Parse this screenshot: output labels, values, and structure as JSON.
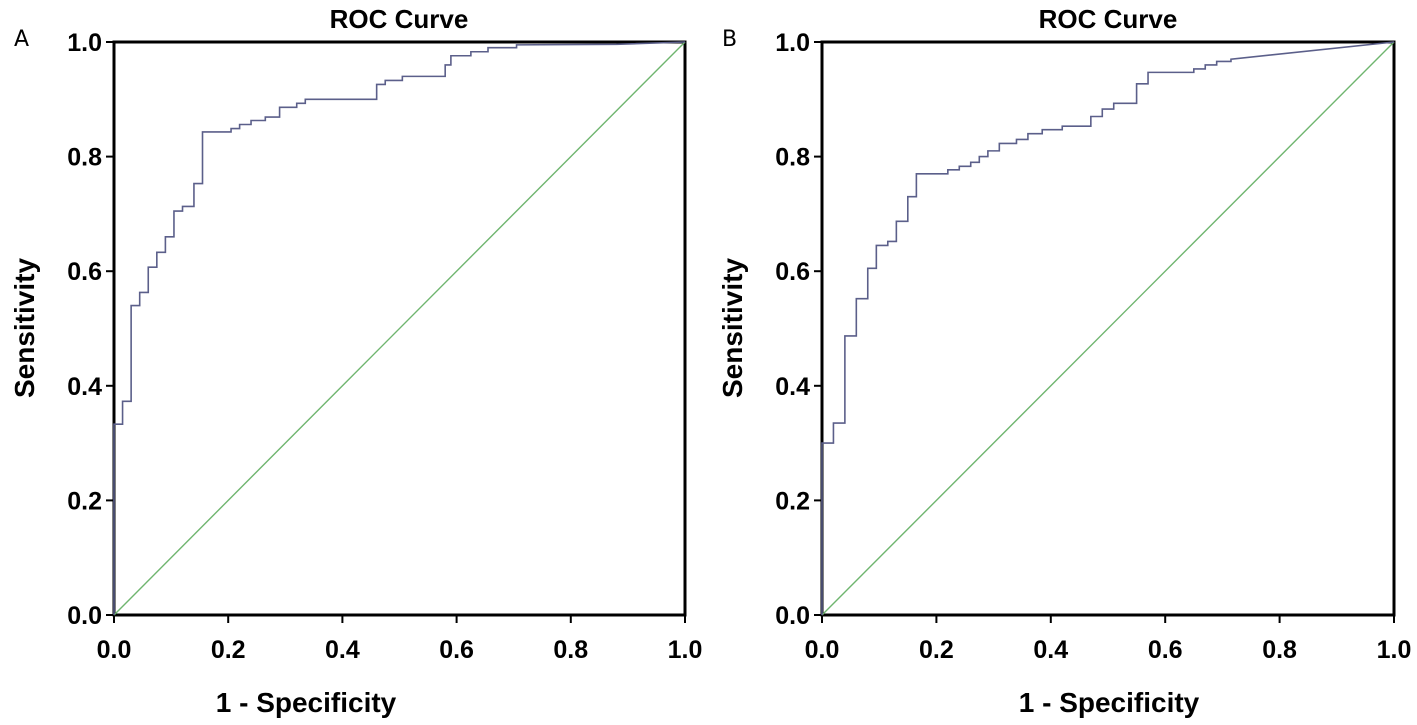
{
  "colors": {
    "roc_line": "#5b5f8a",
    "reference_line": "#6fb56f",
    "frame": "#000000"
  },
  "chart_data": [
    {
      "type": "line",
      "panel_label": "A",
      "title": "ROC Curve",
      "xlabel": "1 - Specificity",
      "ylabel": "Sensitivity",
      "xlim": [
        0,
        1
      ],
      "ylim": [
        0,
        1
      ],
      "xticks": [
        "0.0",
        "0.2",
        "0.4",
        "0.6",
        "0.8",
        "1.0"
      ],
      "yticks": [
        "0.0",
        "0.2",
        "0.4",
        "0.6",
        "0.8",
        "1.0"
      ],
      "series": [
        {
          "name": "ROC",
          "points": [
            [
              0,
              0
            ],
            [
              0,
              0.333
            ],
            [
              0.015,
              0.333
            ],
            [
              0.015,
              0.373
            ],
            [
              0.03,
              0.373
            ],
            [
              0.03,
              0.54
            ],
            [
              0.045,
              0.54
            ],
            [
              0.045,
              0.563
            ],
            [
              0.06,
              0.563
            ],
            [
              0.06,
              0.607
            ],
            [
              0.075,
              0.607
            ],
            [
              0.075,
              0.633
            ],
            [
              0.09,
              0.633
            ],
            [
              0.09,
              0.66
            ],
            [
              0.105,
              0.66
            ],
            [
              0.105,
              0.705
            ],
            [
              0.12,
              0.705
            ],
            [
              0.12,
              0.713
            ],
            [
              0.14,
              0.713
            ],
            [
              0.14,
              0.753
            ],
            [
              0.155,
              0.753
            ],
            [
              0.155,
              0.843
            ],
            [
              0.205,
              0.843
            ],
            [
              0.205,
              0.849
            ],
            [
              0.22,
              0.849
            ],
            [
              0.22,
              0.856
            ],
            [
              0.24,
              0.856
            ],
            [
              0.24,
              0.863
            ],
            [
              0.265,
              0.863
            ],
            [
              0.265,
              0.869
            ],
            [
              0.29,
              0.869
            ],
            [
              0.29,
              0.886
            ],
            [
              0.32,
              0.886
            ],
            [
              0.32,
              0.893
            ],
            [
              0.335,
              0.893
            ],
            [
              0.335,
              0.9
            ],
            [
              0.46,
              0.9
            ],
            [
              0.46,
              0.926
            ],
            [
              0.475,
              0.926
            ],
            [
              0.475,
              0.933
            ],
            [
              0.505,
              0.933
            ],
            [
              0.505,
              0.94
            ],
            [
              0.58,
              0.94
            ],
            [
              0.58,
              0.96
            ],
            [
              0.59,
              0.96
            ],
            [
              0.59,
              0.976
            ],
            [
              0.625,
              0.976
            ],
            [
              0.625,
              0.983
            ],
            [
              0.655,
              0.983
            ],
            [
              0.655,
              0.99
            ],
            [
              0.705,
              0.99
            ],
            [
              0.705,
              0.995
            ],
            [
              0.88,
              0.996
            ],
            [
              1,
              1
            ]
          ]
        },
        {
          "name": "Reference Line",
          "points": [
            [
              0,
              0
            ],
            [
              1,
              1
            ]
          ]
        }
      ]
    },
    {
      "type": "line",
      "panel_label": "B",
      "title": "ROC Curve",
      "xlabel": "1 - Specificity",
      "ylabel": "Sensitivity",
      "xlim": [
        0,
        1
      ],
      "ylim": [
        0,
        1
      ],
      "xticks": [
        "0.0",
        "0.2",
        "0.4",
        "0.6",
        "0.8",
        "1.0"
      ],
      "yticks": [
        "0.0",
        "0.2",
        "0.4",
        "0.6",
        "0.8",
        "1.0"
      ],
      "series": [
        {
          "name": "ROC",
          "points": [
            [
              0,
              0
            ],
            [
              0,
              0.3
            ],
            [
              0.02,
              0.3
            ],
            [
              0.02,
              0.335
            ],
            [
              0.04,
              0.335
            ],
            [
              0.04,
              0.487
            ],
            [
              0.06,
              0.487
            ],
            [
              0.06,
              0.552
            ],
            [
              0.08,
              0.552
            ],
            [
              0.08,
              0.605
            ],
            [
              0.095,
              0.605
            ],
            [
              0.095,
              0.645
            ],
            [
              0.115,
              0.645
            ],
            [
              0.115,
              0.652
            ],
            [
              0.13,
              0.652
            ],
            [
              0.13,
              0.687
            ],
            [
              0.15,
              0.687
            ],
            [
              0.15,
              0.73
            ],
            [
              0.165,
              0.73
            ],
            [
              0.165,
              0.77
            ],
            [
              0.22,
              0.77
            ],
            [
              0.22,
              0.777
            ],
            [
              0.24,
              0.777
            ],
            [
              0.24,
              0.783
            ],
            [
              0.26,
              0.783
            ],
            [
              0.26,
              0.79
            ],
            [
              0.275,
              0.79
            ],
            [
              0.275,
              0.8
            ],
            [
              0.29,
              0.8
            ],
            [
              0.29,
              0.81
            ],
            [
              0.31,
              0.81
            ],
            [
              0.31,
              0.823
            ],
            [
              0.34,
              0.823
            ],
            [
              0.34,
              0.83
            ],
            [
              0.36,
              0.83
            ],
            [
              0.36,
              0.84
            ],
            [
              0.385,
              0.84
            ],
            [
              0.385,
              0.847
            ],
            [
              0.42,
              0.847
            ],
            [
              0.42,
              0.853
            ],
            [
              0.47,
              0.853
            ],
            [
              0.47,
              0.87
            ],
            [
              0.49,
              0.87
            ],
            [
              0.49,
              0.883
            ],
            [
              0.51,
              0.883
            ],
            [
              0.51,
              0.893
            ],
            [
              0.55,
              0.893
            ],
            [
              0.55,
              0.927
            ],
            [
              0.57,
              0.927
            ],
            [
              0.57,
              0.947
            ],
            [
              0.65,
              0.947
            ],
            [
              0.65,
              0.953
            ],
            [
              0.67,
              0.953
            ],
            [
              0.67,
              0.96
            ],
            [
              0.69,
              0.96
            ],
            [
              0.69,
              0.966
            ],
            [
              0.715,
              0.966
            ],
            [
              0.715,
              0.97
            ],
            [
              1,
              1
            ]
          ]
        },
        {
          "name": "Reference Line",
          "points": [
            [
              0,
              0
            ],
            [
              1,
              1
            ]
          ]
        }
      ]
    }
  ]
}
